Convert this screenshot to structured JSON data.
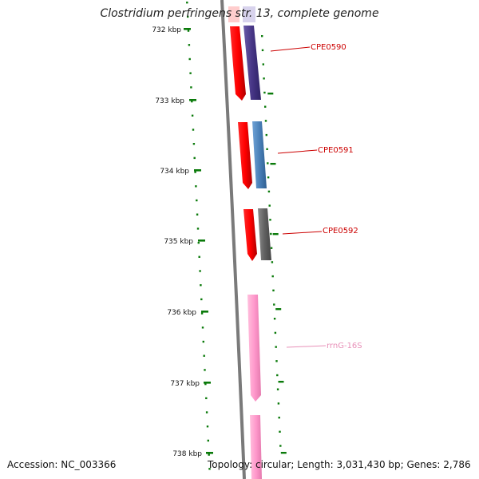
{
  "header": {
    "title": "Clostridium perfringens str. 13, complete genome"
  },
  "ruler": {
    "tick_labels": [
      "732 kbp",
      "733 kbp",
      "734 kbp",
      "735 kbp",
      "736 kbp",
      "737 kbp",
      "738 kbp"
    ]
  },
  "genes": [
    {
      "label": "CPE0590",
      "color": "#c00000",
      "strand_color": "#4b3a8c"
    },
    {
      "label": "CPE0591",
      "color": "#c00000",
      "strand_color": "#4a7fb5"
    },
    {
      "label": "CPE0592",
      "color": "#c00000",
      "strand_color": "#5a5a5a"
    },
    {
      "label": "rrnG-16S",
      "color": "#f090c0",
      "strand_color": "#f8a8d0"
    }
  ],
  "colors": {
    "backbone": "#7a7a7a",
    "cds_forward": "#ff0000",
    "tick": "#0a7a0a",
    "label_red": "#cc0000",
    "label_pink": "#e890b8",
    "rrna": "#ff99cc"
  },
  "footer": {
    "accession": "Accession: NC_003366",
    "topology": "Topology: circular; Length: 3,031,430 bp; Genes: 2,786"
  }
}
